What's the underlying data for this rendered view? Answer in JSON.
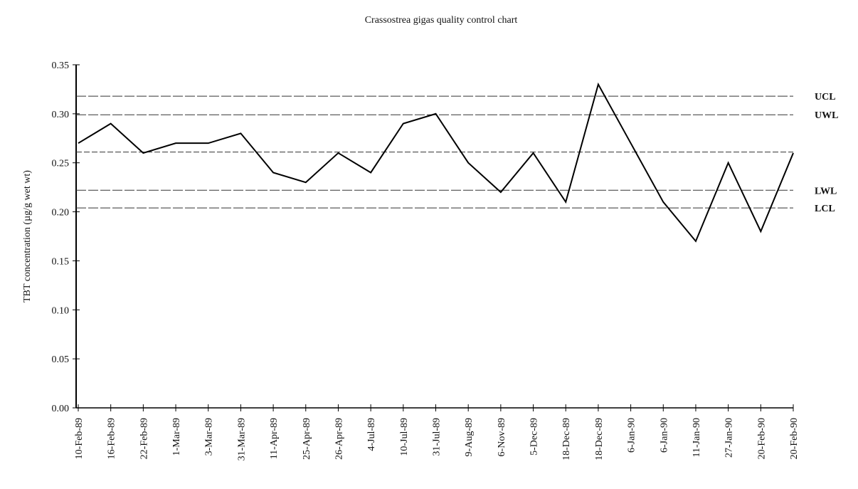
{
  "chart_data": {
    "type": "line",
    "title": "Crassostrea gigas quality control chart",
    "y_label": "TBT concentration (µg/g wet wt)",
    "categories": [
      "10-Feb-89",
      "16-Feb-89",
      "22-Feb-89",
      "1-Mar-89",
      "3-Mar-89",
      "31-Mar-89",
      "11-Apr-89",
      "25-Apr-89",
      "26-Apr-89",
      "4-Jul-89",
      "10-Jul-89",
      "31-Jul-89",
      "9-Aug-89",
      "6-Nov-89",
      "5-Dec-89",
      "18-Dec-89",
      "18-Dec-89",
      "6-Jan-90",
      "6-Jan-90",
      "11-Jan-90",
      "27-Jan-90",
      "20-Feb-90",
      "20-Feb-90"
    ],
    "series": [
      {
        "color": "#000000",
        "values": [
          0.27,
          0.29,
          0.26,
          0.27,
          0.27,
          0.28,
          0.24,
          0.23,
          0.26,
          0.24,
          0.29,
          0.3,
          0.25,
          0.22,
          0.26,
          0.21,
          0.33,
          0.27,
          0.21,
          0.17,
          0.25,
          0.18,
          0.26
        ]
      }
    ],
    "reference_lines": [
      {
        "name": "UCL",
        "value": 0.318
      },
      {
        "name": "UWL",
        "value": 0.299
      },
      {
        "value": 0.261
      },
      {
        "name": "LWL",
        "value": 0.222
      },
      {
        "name": "LCL",
        "value": 0.204
      }
    ],
    "ylim": [
      0,
      0.35
    ],
    "yticks": [
      {
        "value": 0,
        "label": "0.00"
      },
      0.05,
      {
        "value": 0.1,
        "label": "0.10"
      },
      0.15,
      {
        "value": 0.2,
        "label": "0.20"
      },
      0.25,
      {
        "value": 0.3,
        "label": "0.30"
      },
      0.35
    ]
  }
}
